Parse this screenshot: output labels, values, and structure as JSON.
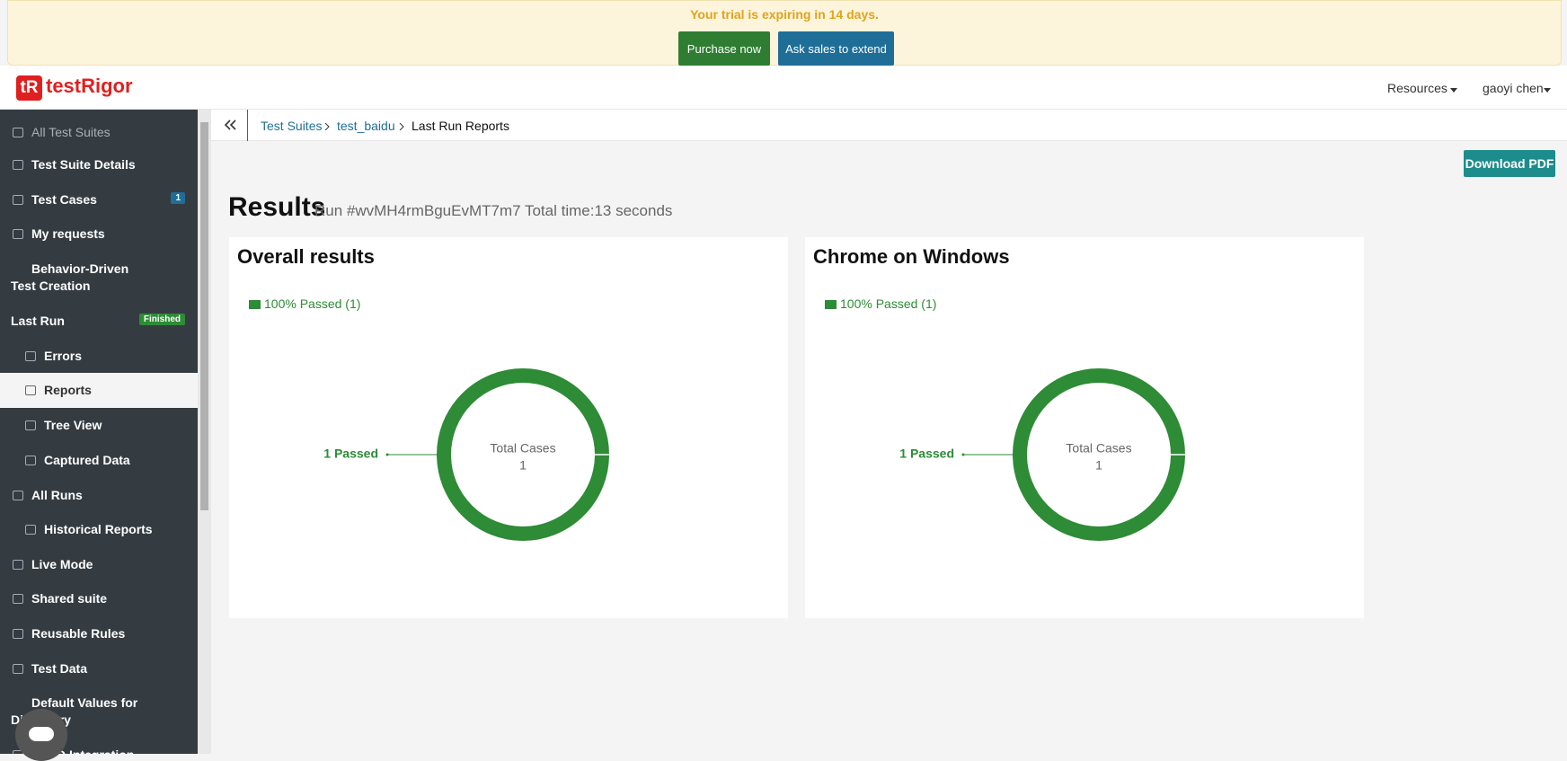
{
  "banner": {
    "message": "Your trial is expiring in 14 days.",
    "buttons": [
      "Purchase now",
      "Ask sales to extend"
    ]
  },
  "header": {
    "logo_mark": "tR",
    "logo": "testRigor",
    "menu": [
      "Resources",
      "gaoyi chen"
    ]
  },
  "sidebar": {
    "items": [
      {
        "label": "All Test Suites"
      },
      {
        "label": "Test Suite Details"
      },
      {
        "label": "Test Cases",
        "badge": "1"
      },
      {
        "label": "My requests"
      },
      {
        "label": "Behavior-Driven Test Creation"
      },
      {
        "label": "Last Run",
        "badge": "Finished"
      },
      {
        "label": "Errors"
      },
      {
        "label": "Reports"
      },
      {
        "label": "Tree View"
      },
      {
        "label": "Captured Data"
      },
      {
        "label": "All Runs"
      },
      {
        "label": "Historical Reports"
      },
      {
        "label": "Live Mode"
      },
      {
        "label": "Shared suite"
      },
      {
        "label": "Reusable Rules"
      },
      {
        "label": "Test Data"
      },
      {
        "label": "Default Values for Discovery"
      },
      {
        "label": "CI/CD Integration"
      }
    ]
  },
  "breadcrumb": [
    "Test Suites",
    "test_baidu",
    "Last Run Reports"
  ],
  "download": "Download PDF",
  "results": {
    "title": "Results",
    "subtitle": "Run #wvMH4rmBguEvMT7m7 Total time:13 seconds"
  },
  "cards": [
    {
      "title": "Overall results",
      "legend": "100% Passed (1)",
      "center_label": "Total Cases",
      "total": 1,
      "slices": [
        {
          "label": "1 Passed",
          "value": 1,
          "color": "#2e8b36"
        }
      ]
    },
    {
      "title": "Chrome on Windows",
      "legend": "100% Passed (1)",
      "center_label": "Total Cases",
      "total": 1,
      "slices": [
        {
          "label": "1 Passed",
          "value": 1,
          "color": "#2e8b36"
        }
      ]
    }
  ]
}
